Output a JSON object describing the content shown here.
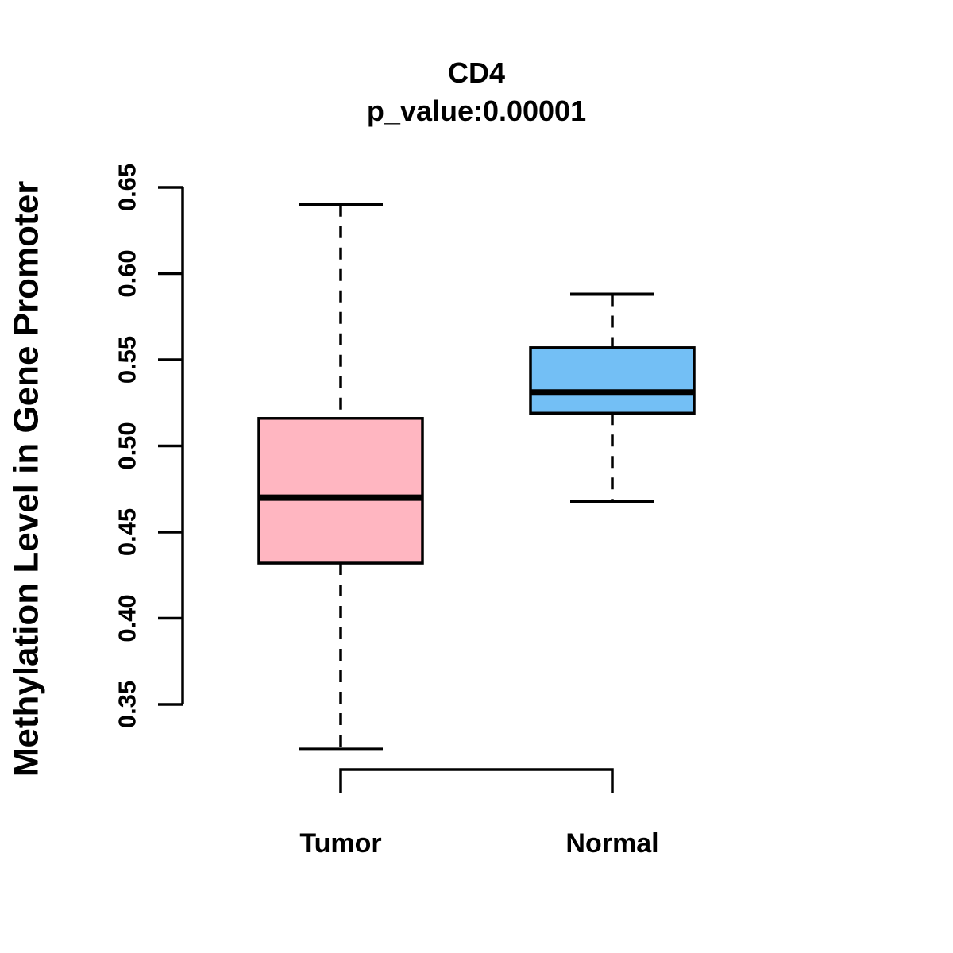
{
  "chart_data": {
    "type": "boxplot",
    "title": "CD4",
    "subtitle": "p_value:0.00001",
    "ylabel": "Methylation Level in Gene Promoter",
    "xlabel": "",
    "categories": [
      "Tumor",
      "Normal"
    ],
    "yticks": [
      0.35,
      0.4,
      0.45,
      0.5,
      0.55,
      0.6,
      0.65
    ],
    "axis_range": [
      0.35,
      0.65
    ],
    "grid": false,
    "legend": "none",
    "background": "#FFFFFF",
    "line_color": "#000000",
    "whisker_style": "dashed",
    "series": [
      {
        "name": "Tumor",
        "box_color": "#FFB6C1",
        "whisker_low": 0.324,
        "q1": 0.432,
        "median": 0.47,
        "q3": 0.516,
        "whisker_high": 0.64
      },
      {
        "name": "Normal",
        "box_color": "#73BFF5",
        "whisker_low": 0.468,
        "q1": 0.519,
        "median": 0.531,
        "q3": 0.557,
        "whisker_high": 0.588
      }
    ]
  }
}
